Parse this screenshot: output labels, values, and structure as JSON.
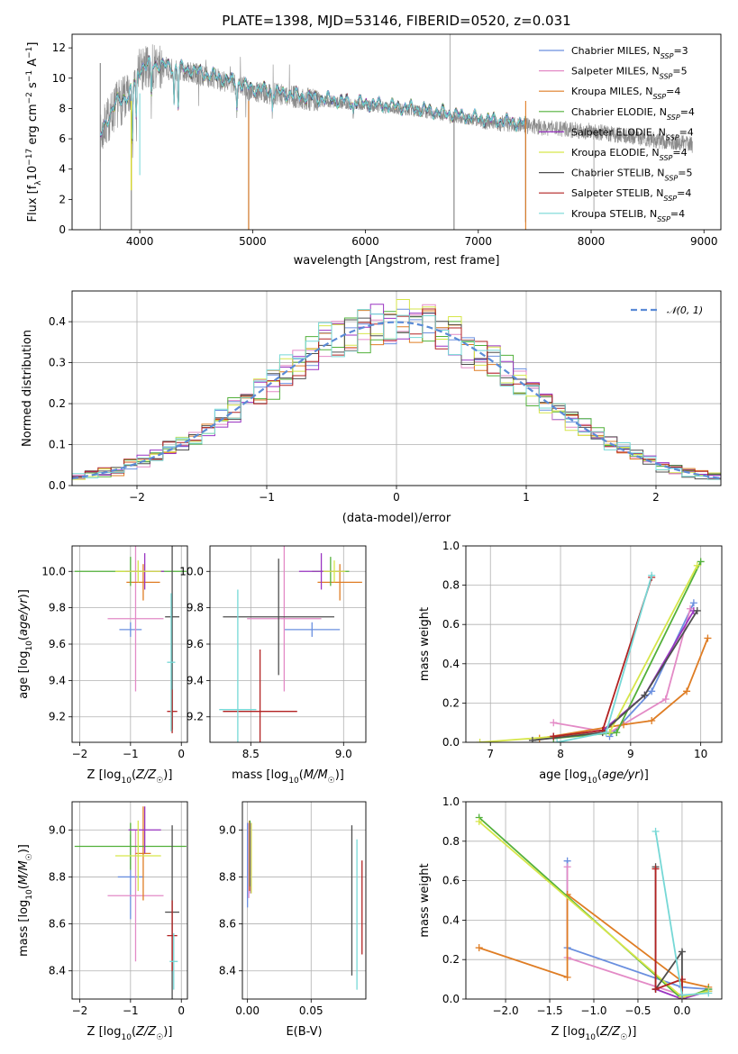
{
  "colors": {
    "Chabrier MILES": "#6a8fdf",
    "Salpeter MILES": "#e38ac6",
    "Kroupa MILES": "#df7d24",
    "Chabrier ELODIE": "#52b03a",
    "Salpeter ELODIE": "#9a35c2",
    "Kroupa ELODIE": "#d6e64a",
    "Chabrier STELIB": "#4f4f4f",
    "Salpeter STELIB": "#b22222",
    "Kroupa STELIB": "#76d8d6",
    "data": "#8a8a8a",
    "gauss": "#5b8bd6"
  },
  "chart_data": [
    {
      "id": "spectrum",
      "type": "line",
      "title": "PLATE=1398, MJD=53146, FIBERID=0520, z=0.031",
      "xlabel": "wavelength [Angstrom, rest frame]",
      "ylabel": "Flux [f_λ10^-17 erg cm^-2 s^-1 A^-1]",
      "xlim": [
        3400,
        9150
      ],
      "ylim": [
        0,
        12.9
      ],
      "xticks": [
        4000,
        5000,
        6000,
        7000,
        8000,
        9000
      ],
      "yticks": [
        0,
        2,
        4,
        6,
        8,
        10,
        12
      ],
      "grid": false,
      "legend_position": "top-right",
      "legend": [
        {
          "name": "Chabrier MILES",
          "nssp": "3"
        },
        {
          "name": "Salpeter MILES",
          "nssp": "5"
        },
        {
          "name": "Kroupa MILES",
          "nssp": "4"
        },
        {
          "name": "Chabrier ELODIE",
          "nssp": "4"
        },
        {
          "name": "Salpeter ELODIE",
          "nssp": "4"
        },
        {
          "name": "Kroupa ELODIE",
          "nssp": "4"
        },
        {
          "name": "Chabrier STELIB",
          "nssp": "5"
        },
        {
          "name": "Salpeter STELIB",
          "nssp": "4"
        },
        {
          "name": "Kroupa STELIB",
          "nssp": "4"
        }
      ],
      "continuum": {
        "x": [
          3650,
          3700,
          3800,
          3900,
          3950,
          4000,
          4100,
          4300,
          4500,
          4800,
          5000,
          5500,
          6000,
          6500,
          7000,
          7500,
          8000,
          8500,
          8900
        ],
        "y": [
          6.0,
          7.0,
          8.3,
          8.7,
          9.5,
          10.5,
          10.8,
          10.6,
          10.3,
          9.7,
          9.2,
          8.6,
          8.2,
          7.8,
          7.2,
          6.8,
          6.5,
          6.0,
          5.6
        ]
      },
      "absorption_lines": [
        {
          "x": 3934,
          "depth": 3.5
        },
        {
          "x": 3969,
          "depth": 2.8
        },
        {
          "x": 4102,
          "depth": 2.0
        },
        {
          "x": 4304,
          "depth": 2.2
        },
        {
          "x": 4341,
          "depth": 2.5
        },
        {
          "x": 4861,
          "depth": 1.5
        },
        {
          "x": 5175,
          "depth": 1.0
        },
        {
          "x": 5893,
          "depth": 0.7
        }
      ],
      "sky_features": [
        {
          "x": 3650,
          "min": 0.0,
          "max": 11.0
        },
        {
          "x": 3925,
          "min": 0.0,
          "max": 9.0
        },
        {
          "x": 4965,
          "min": 0.0,
          "max": 9.5
        },
        {
          "x": 6785,
          "min": 0.0,
          "max": 7.5
        },
        {
          "x": 7420,
          "min": 0.5,
          "max": 7.5
        },
        {
          "x": 6750,
          "min": 7.0,
          "max": 12.9
        },
        {
          "x": 8025,
          "min": 1.2,
          "max": 6.3
        }
      ],
      "data_extends_to": 8900,
      "model_extends_to": 7420
    },
    {
      "id": "residuals",
      "type": "line",
      "title": "",
      "xlabel": "(data-model)/error",
      "ylabel": "Normed distribution",
      "xlim": [
        -2.5,
        2.5
      ],
      "ylim": [
        0,
        0.475
      ],
      "xticks": [
        -2,
        -1,
        0,
        1,
        2
      ],
      "yticks": [
        0.0,
        0.1,
        0.2,
        0.3,
        0.4
      ],
      "grid": true,
      "legend_position": "top-right",
      "legend": [
        {
          "name": "𝒩(0, 1)"
        }
      ],
      "bins": 50
    },
    {
      "id": "age-Z",
      "type": "scatter",
      "xlabel": "Z [log10(Z/Z☉)]",
      "ylabel": "age  [log10(age/yr)]",
      "xlim": [
        -2.15,
        0.12
      ],
      "ylim": [
        9.06,
        10.14
      ],
      "xticks": [
        -2,
        -1,
        0
      ],
      "yticks": [
        9.2,
        9.4,
        9.6,
        9.8,
        10.0
      ],
      "grid": true,
      "points": [
        {
          "model": "Chabrier MILES",
          "x": -1.0,
          "xerr": 0.22,
          "y": 9.68,
          "yerr": 0.04
        },
        {
          "model": "Salpeter MILES",
          "x": -0.9,
          "xerr": 0.55,
          "y": 9.74,
          "yerr": 0.4
        },
        {
          "model": "Kroupa MILES",
          "x": -0.75,
          "xerr": 0.33,
          "y": 9.94,
          "yerr": 0.1
        },
        {
          "model": "Chabrier ELODIE",
          "x": -1.0,
          "xerr": 1.1,
          "y": 10.0,
          "yerr": 0.08
        },
        {
          "model": "Salpeter ELODIE",
          "x": -0.72,
          "xerr": 0.38,
          "y": 10.0,
          "yerr": 0.1
        },
        {
          "model": "Kroupa ELODIE",
          "x": -0.85,
          "xerr": 0.45,
          "y": 10.0,
          "yerr": 0.06
        },
        {
          "model": "Chabrier STELIB",
          "x": -0.18,
          "xerr": 0.14,
          "y": 9.75,
          "yerr": 0.62
        },
        {
          "model": "Salpeter STELIB",
          "x": -0.18,
          "xerr": 0.1,
          "y": 9.23,
          "yerr": 0.12
        },
        {
          "model": "Kroupa STELIB",
          "x": -0.2,
          "xerr": 0.08,
          "y": 9.5,
          "yerr": 0.38
        }
      ]
    },
    {
      "id": "age-mass",
      "type": "scatter",
      "xlabel": "mass [log10(M/M☉)]",
      "ylabel": "",
      "xlim": [
        8.28,
        9.12
      ],
      "ylim": [
        9.06,
        10.14
      ],
      "xticks": [
        8.5,
        9.0
      ],
      "yticks": [
        9.2,
        9.4,
        9.6,
        9.8,
        10.0
      ],
      "grid": true,
      "points": [
        {
          "model": "Chabrier MILES",
          "x": 8.83,
          "xerr": 0.15,
          "y": 9.68,
          "yerr": 0.04
        },
        {
          "model": "Salpeter MILES",
          "x": 8.68,
          "xerr": 0.2,
          "y": 9.74,
          "yerr": 0.4
        },
        {
          "model": "Kroupa MILES",
          "x": 8.98,
          "xerr": 0.12,
          "y": 9.94,
          "yerr": 0.1
        },
        {
          "model": "Chabrier ELODIE",
          "x": 8.93,
          "xerr": 0.1,
          "y": 10.0,
          "yerr": 0.08
        },
        {
          "model": "Salpeter ELODIE",
          "x": 8.88,
          "xerr": 0.12,
          "y": 10.0,
          "yerr": 0.1
        },
        {
          "model": "Kroupa ELODIE",
          "x": 8.95,
          "xerr": 0.06,
          "y": 10.0,
          "yerr": 0.06
        },
        {
          "model": "Chabrier STELIB",
          "x": 8.65,
          "xerr": 0.3,
          "y": 9.75,
          "yerr": 0.32
        },
        {
          "model": "Salpeter STELIB",
          "x": 8.55,
          "xerr": 0.2,
          "y": 9.23,
          "yerr": 0.34
        },
        {
          "model": "Kroupa STELIB",
          "x": 8.43,
          "xerr": 0.1,
          "y": 9.24,
          "yerr": 0.66
        }
      ]
    },
    {
      "id": "weight-age",
      "type": "line",
      "xlabel": "age  [log10(age/yr)]",
      "ylabel": "mass weight",
      "xlim": [
        6.65,
        10.3
      ],
      "ylim": [
        0.0,
        1.0
      ],
      "xticks": [
        7,
        8,
        9,
        10
      ],
      "yticks": [
        0.0,
        0.2,
        0.4,
        0.6,
        0.8,
        1.0
      ],
      "grid": true,
      "series": [
        {
          "model": "Chabrier MILES",
          "x": [
            8.7,
            9.3,
            9.9
          ],
          "y": [
            0.03,
            0.26,
            0.71
          ]
        },
        {
          "model": "Salpeter MILES",
          "x": [
            7.9,
            8.7,
            9.5,
            9.85
          ],
          "y": [
            0.1,
            0.05,
            0.22,
            0.68
          ]
        },
        {
          "model": "Kroupa MILES",
          "x": [
            7.7,
            8.9,
            9.3,
            9.8,
            10.1
          ],
          "y": [
            0.02,
            0.09,
            0.11,
            0.26,
            0.53
          ]
        },
        {
          "model": "Chabrier ELODIE",
          "x": [
            7.9,
            8.8,
            10.0
          ],
          "y": [
            0.02,
            0.05,
            0.92
          ]
        },
        {
          "model": "Salpeter ELODIE",
          "x": [
            7.9,
            8.6,
            9.2,
            9.9
          ],
          "y": [
            0.03,
            0.06,
            0.24,
            0.67
          ]
        },
        {
          "model": "Kroupa ELODIE",
          "x": [
            6.85,
            8.7,
            9.95
          ],
          "y": [
            0.0,
            0.05,
            0.9
          ]
        },
        {
          "model": "Chabrier STELIB",
          "x": [
            7.6,
            8.6,
            9.2,
            9.95
          ],
          "y": [
            0.01,
            0.05,
            0.24,
            0.67
          ]
        },
        {
          "model": "Salpeter STELIB",
          "x": [
            7.9,
            8.6,
            9.3
          ],
          "y": [
            0.03,
            0.06,
            0.84
          ]
        },
        {
          "model": "Kroupa STELIB",
          "x": [
            7.95,
            8.65,
            9.3
          ],
          "y": [
            0.0,
            0.05,
            0.85
          ]
        }
      ]
    },
    {
      "id": "mass-Z",
      "type": "scatter",
      "xlabel": "Z [log10(Z/Z☉)]",
      "ylabel": "mass [log10(M/M☉)]",
      "xlim": [
        -2.15,
        0.12
      ],
      "ylim": [
        8.28,
        9.12
      ],
      "xticks": [
        -2,
        -1,
        0
      ],
      "yticks": [
        8.4,
        8.6,
        8.8,
        9.0
      ],
      "grid": true,
      "points": [
        {
          "model": "Chabrier MILES",
          "x": -1.0,
          "xerr": 0.25,
          "y": 8.8,
          "yerr": 0.18
        },
        {
          "model": "Salpeter MILES",
          "x": -0.9,
          "xerr": 0.55,
          "y": 8.72,
          "yerr": 0.28
        },
        {
          "model": "Kroupa MILES",
          "x": -0.75,
          "xerr": 0.15,
          "y": 8.9,
          "yerr": 0.2
        },
        {
          "model": "Chabrier ELODIE",
          "x": -1.0,
          "xerr": 1.1,
          "y": 8.93,
          "yerr": 0.1
        },
        {
          "model": "Salpeter ELODIE",
          "x": -0.72,
          "xerr": 0.32,
          "y": 9.0,
          "yerr": 0.1
        },
        {
          "model": "Kroupa ELODIE",
          "x": -0.85,
          "xerr": 0.45,
          "y": 8.89,
          "yerr": 0.15
        },
        {
          "model": "Chabrier STELIB",
          "x": -0.18,
          "xerr": 0.14,
          "y": 8.65,
          "yerr": 0.37
        },
        {
          "model": "Salpeter STELIB",
          "x": -0.18,
          "xerr": 0.1,
          "y": 8.55,
          "yerr": 0.15
        },
        {
          "model": "Kroupa STELIB",
          "x": -0.15,
          "xerr": 0.08,
          "y": 8.44,
          "yerr": 0.12
        }
      ]
    },
    {
      "id": "mass-ebv",
      "type": "scatter",
      "xlabel": "E(B-V)",
      "ylabel": "",
      "xlim": [
        -0.004,
        0.093
      ],
      "ylim": [
        8.28,
        9.12
      ],
      "xticks": [
        0.0,
        0.05
      ],
      "yticks": [
        8.4,
        8.6,
        8.8,
        9.0
      ],
      "grid": true,
      "points": [
        {
          "model": "Chabrier MILES",
          "x": 0.0,
          "xerr": 0,
          "y": 8.85,
          "yerr": 0.18
        },
        {
          "model": "Salpeter MILES",
          "x": 0.001,
          "xerr": 0,
          "y": 8.87,
          "yerr": 0.16
        },
        {
          "model": "Kroupa MILES",
          "x": 0.0015,
          "xerr": 0,
          "y": 8.89,
          "yerr": 0.15
        },
        {
          "model": "Chabrier ELODIE",
          "x": 0.002,
          "xerr": 0,
          "y": 8.9,
          "yerr": 0.14
        },
        {
          "model": "Salpeter ELODIE",
          "x": 0.0025,
          "xerr": 0,
          "y": 8.88,
          "yerr": 0.15
        },
        {
          "model": "Kroupa ELODIE",
          "x": 0.003,
          "xerr": 0,
          "y": 8.88,
          "yerr": 0.15
        },
        {
          "model": "Chabrier STELIB",
          "x": 0.082,
          "xerr": 0,
          "y": 8.7,
          "yerr": 0.32
        },
        {
          "model": "Salpeter STELIB",
          "x": 0.09,
          "xerr": 0,
          "y": 8.67,
          "yerr": 0.2
        },
        {
          "model": "Kroupa STELIB",
          "x": 0.086,
          "xerr": 0,
          "y": 8.64,
          "yerr": 0.32
        }
      ]
    },
    {
      "id": "weight-Z",
      "type": "line",
      "xlabel": "Z [log10(Z/Z☉)]",
      "ylabel": "mass weight",
      "xlim": [
        -2.45,
        0.45
      ],
      "ylim": [
        0.0,
        1.0
      ],
      "xticks": [
        -2.0,
        -1.5,
        -1.0,
        -0.5,
        0.0
      ],
      "yticks": [
        0.0,
        0.2,
        0.4,
        0.6,
        0.8,
        1.0
      ],
      "grid": true,
      "series": [
        {
          "model": "Chabrier MILES",
          "x": [
            -1.3,
            -1.3,
            0.0,
            0.3
          ],
          "y": [
            0.7,
            0.26,
            0.06,
            0.05
          ]
        },
        {
          "model": "Salpeter MILES",
          "x": [
            -1.3,
            -1.3,
            0.0
          ],
          "y": [
            0.67,
            0.21,
            0.02
          ]
        },
        {
          "model": "Kroupa MILES",
          "x": [
            -2.3,
            -1.3,
            -1.3,
            0.0,
            0.3
          ],
          "y": [
            0.26,
            0.11,
            0.53,
            0.09,
            0.06
          ]
        },
        {
          "model": "Chabrier ELODIE",
          "x": [
            -2.3,
            0.0,
            0.3
          ],
          "y": [
            0.92,
            0.0,
            0.05
          ]
        },
        {
          "model": "Salpeter ELODIE",
          "x": [
            -0.3,
            0.0,
            0.3
          ],
          "y": [
            0.05,
            0.0,
            0.04
          ]
        },
        {
          "model": "Kroupa ELODIE",
          "x": [
            -2.3,
            0.0,
            0.3
          ],
          "y": [
            0.9,
            0.01,
            0.04
          ]
        },
        {
          "model": "Chabrier STELIB",
          "x": [
            -0.3,
            -0.3,
            0.0,
            0.0
          ],
          "y": [
            0.67,
            0.05,
            0.24,
            0.0
          ]
        },
        {
          "model": "Salpeter STELIB",
          "x": [
            -0.3,
            -0.3,
            0.0,
            0.0
          ],
          "y": [
            0.66,
            0.05,
            0.1,
            0.0
          ]
        },
        {
          "model": "Kroupa STELIB",
          "x": [
            -0.3,
            0.0,
            0.3
          ],
          "y": [
            0.85,
            0.02,
            0.03
          ]
        }
      ]
    }
  ]
}
